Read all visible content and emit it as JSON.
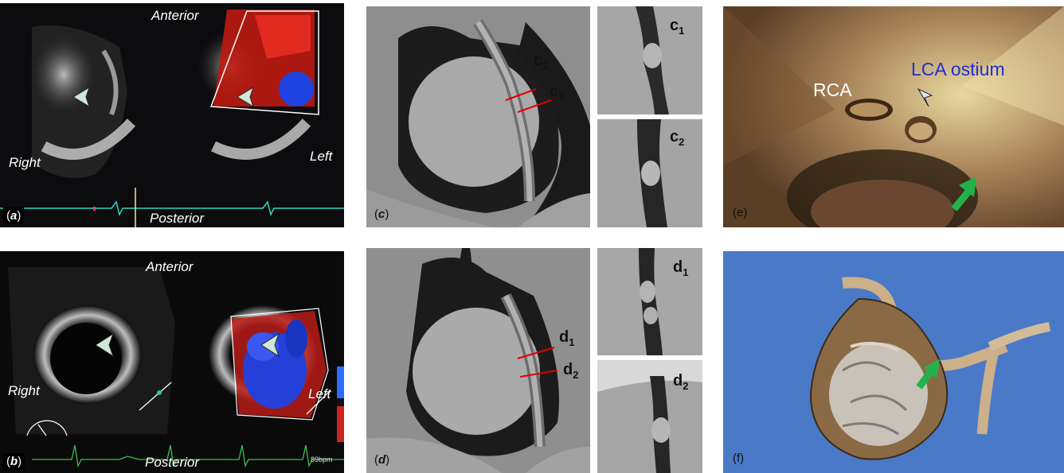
{
  "panel_a": {
    "label_open": "(",
    "label_letter": "a",
    "label_close": ")",
    "anterior": "Anterior",
    "posterior": "Posterior",
    "right": "Right",
    "left": "Left"
  },
  "panel_b": {
    "label_open": "(",
    "label_letter": "b",
    "label_close": ")",
    "anterior": "Anterior",
    "posterior": "Posterior",
    "right": "Right",
    "left": "Left",
    "heart_rate": "89bpm"
  },
  "panel_c": {
    "label_open": "(",
    "label_letter": "c",
    "label_close": ")",
    "cut1_base": "c",
    "cut1_sub": "1",
    "cut2_base": "c",
    "cut2_sub": "2"
  },
  "panel_d": {
    "label_open": "(",
    "label_letter": "d",
    "label_close": ")",
    "cut1_base": "d",
    "cut1_sub": "1",
    "cut2_base": "d",
    "cut2_sub": "2"
  },
  "panel_e": {
    "label": "(e)",
    "rca": "RCA",
    "lca": "LCA ostium",
    "lca_color": "#1f2fd0",
    "arrow_color": "#22b24c"
  },
  "panel_f": {
    "label": "(f)",
    "background": "#4a79c8",
    "arrow_color": "#22b24c"
  },
  "icons": {
    "arrowhead": "arrowhead-marker-icon",
    "arrow": "green-arrow-icon"
  }
}
